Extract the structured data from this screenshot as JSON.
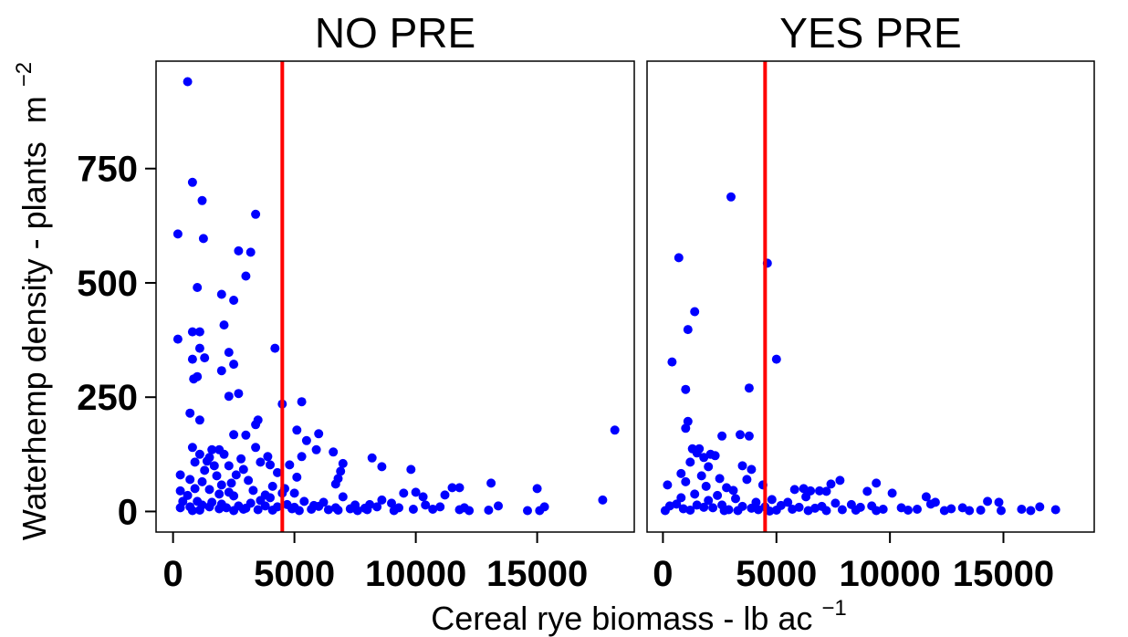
{
  "chart_data": {
    "type": "scatter",
    "ylabel": "Waterhemp density - plants",
    "ylabel_unit": "m",
    "ylabel_exp": "−2",
    "xlabel": "Cereal rye biomass - lb ac",
    "xlabel_exp": "−1",
    "xlim": [
      -700,
      19000
    ],
    "ylim": [
      -45,
      985
    ],
    "xticks": [
      0,
      5000,
      10000,
      15000
    ],
    "xtick_labels": [
      "0",
      "5000",
      "10000",
      "15000"
    ],
    "yticks": [
      0,
      250,
      500,
      750
    ],
    "ytick_labels": [
      "0",
      "250",
      "500",
      "750"
    ],
    "reference_line_x": 4500,
    "colors": {
      "points": "#0000ff",
      "reference_line": "#ff0000",
      "frame": "#000000"
    },
    "panels": [
      {
        "title": "NO PRE",
        "points": [
          [
            600,
            940
          ],
          [
            800,
            720
          ],
          [
            1200,
            680
          ],
          [
            3400,
            650
          ],
          [
            200,
            607
          ],
          [
            1250,
            597
          ],
          [
            2700,
            570
          ],
          [
            3200,
            567
          ],
          [
            3000,
            515
          ],
          [
            1000,
            490
          ],
          [
            2000,
            475
          ],
          [
            2500,
            462
          ],
          [
            2100,
            408
          ],
          [
            800,
            393
          ],
          [
            1100,
            393
          ],
          [
            200,
            377
          ],
          [
            1100,
            357
          ],
          [
            4200,
            357
          ],
          [
            2300,
            348
          ],
          [
            1300,
            336
          ],
          [
            800,
            333
          ],
          [
            2500,
            322
          ],
          [
            2000,
            308
          ],
          [
            1000,
            295
          ],
          [
            850,
            290
          ],
          [
            2700,
            258
          ],
          [
            2300,
            252
          ],
          [
            5300,
            240
          ],
          [
            4500,
            235
          ],
          [
            700,
            215
          ],
          [
            1100,
            200
          ],
          [
            3500,
            200
          ],
          [
            3400,
            190
          ],
          [
            5100,
            178
          ],
          [
            6000,
            170
          ],
          [
            2500,
            168
          ],
          [
            3000,
            167
          ],
          [
            5500,
            155
          ],
          [
            800,
            140
          ],
          [
            3400,
            140
          ],
          [
            1600,
            135
          ],
          [
            5900,
            135
          ],
          [
            1900,
            135
          ],
          [
            6600,
            130
          ],
          [
            2100,
            125
          ],
          [
            1100,
            125
          ],
          [
            3900,
            120
          ],
          [
            5300,
            120
          ],
          [
            1500,
            118
          ],
          [
            8200,
            117
          ],
          [
            2800,
            115
          ],
          [
            1400,
            110
          ],
          [
            900,
            108
          ],
          [
            3600,
            108
          ],
          [
            7000,
            105
          ],
          [
            4000,
            102
          ],
          [
            4800,
            102
          ],
          [
            1700,
            100
          ],
          [
            2300,
            100
          ],
          [
            8600,
            98
          ],
          [
            9800,
            92
          ],
          [
            2900,
            92
          ],
          [
            1300,
            90
          ],
          [
            6900,
            88
          ],
          [
            4300,
            85
          ],
          [
            300,
            80
          ],
          [
            2600,
            80
          ],
          [
            1800,
            78
          ],
          [
            5100,
            75
          ],
          [
            6800,
            72
          ],
          [
            700,
            70
          ],
          [
            3100,
            68
          ],
          [
            1200,
            65
          ],
          [
            2400,
            62
          ],
          [
            13100,
            62
          ],
          [
            6700,
            60
          ],
          [
            2000,
            58
          ],
          [
            4100,
            55
          ],
          [
            11500,
            52
          ],
          [
            11800,
            52
          ],
          [
            4600,
            50
          ],
          [
            900,
            50
          ],
          [
            15000,
            50
          ],
          [
            1500,
            48
          ],
          [
            3300,
            46
          ],
          [
            300,
            45
          ],
          [
            2300,
            42
          ],
          [
            10000,
            42
          ],
          [
            4500,
            40
          ],
          [
            5000,
            40
          ],
          [
            9500,
            40
          ],
          [
            1900,
            38
          ],
          [
            3800,
            36
          ],
          [
            11200,
            36
          ],
          [
            600,
            35
          ],
          [
            2500,
            34
          ],
          [
            7000,
            32
          ],
          [
            10300,
            32
          ],
          [
            4000,
            30
          ],
          [
            17700,
            25
          ],
          [
            8600,
            25
          ],
          [
            3600,
            24
          ],
          [
            400,
            22
          ],
          [
            1000,
            22
          ],
          [
            5400,
            22
          ],
          [
            6200,
            20
          ],
          [
            1600,
            20
          ],
          [
            3200,
            18
          ],
          [
            9000,
            18
          ],
          [
            2000,
            16
          ],
          [
            4700,
            15
          ],
          [
            7500,
            14
          ],
          [
            8100,
            15
          ],
          [
            1200,
            14
          ],
          [
            10400,
            14
          ],
          [
            5800,
            13
          ],
          [
            13400,
            12
          ],
          [
            2700,
            12
          ],
          [
            3800,
            12
          ],
          [
            6000,
            11
          ],
          [
            700,
            10
          ],
          [
            8400,
            10
          ],
          [
            15300,
            10
          ],
          [
            1500,
            10
          ],
          [
            4300,
            10
          ],
          [
            11000,
            10
          ],
          [
            5000,
            9
          ],
          [
            300,
            8
          ],
          [
            9300,
            8
          ],
          [
            6700,
            8
          ],
          [
            2200,
            8
          ],
          [
            12000,
            8
          ],
          [
            3000,
            7
          ],
          [
            7900,
            7
          ],
          [
            4900,
            6
          ],
          [
            1900,
            6
          ],
          [
            7300,
            6
          ],
          [
            2900,
            5
          ],
          [
            9900,
            5
          ],
          [
            5700,
            5
          ],
          [
            10700,
            5
          ],
          [
            3500,
            4
          ],
          [
            6400,
            4
          ],
          [
            8000,
            4
          ],
          [
            11800,
            4
          ],
          [
            4100,
            3
          ],
          [
            1100,
            3
          ],
          [
            6800,
            3
          ],
          [
            13000,
            3
          ],
          [
            14600,
            2
          ],
          [
            800,
            2
          ],
          [
            2500,
            2
          ],
          [
            5200,
            2
          ],
          [
            7600,
            2
          ],
          [
            9100,
            2
          ],
          [
            12200,
            2
          ],
          [
            15100,
            2
          ],
          [
            18200,
            178
          ]
        ]
      },
      {
        "title": "YES PRE",
        "points": [
          [
            3000,
            688
          ],
          [
            700,
            555
          ],
          [
            4600,
            543
          ],
          [
            1100,
            398
          ],
          [
            1400,
            437
          ],
          [
            400,
            327
          ],
          [
            5000,
            333
          ],
          [
            1000,
            267
          ],
          [
            3800,
            270
          ],
          [
            1100,
            197
          ],
          [
            1000,
            182
          ],
          [
            2600,
            165
          ],
          [
            3400,
            168
          ],
          [
            3800,
            165
          ],
          [
            1300,
            137
          ],
          [
            1600,
            137
          ],
          [
            1500,
            128
          ],
          [
            2100,
            125
          ],
          [
            2300,
            122
          ],
          [
            1800,
            118
          ],
          [
            1200,
            108
          ],
          [
            3500,
            100
          ],
          [
            2000,
            98
          ],
          [
            3900,
            92
          ],
          [
            800,
            83
          ],
          [
            1700,
            78
          ],
          [
            2500,
            72
          ],
          [
            3700,
            70
          ],
          [
            1000,
            65
          ],
          [
            7800,
            68
          ],
          [
            7400,
            60
          ],
          [
            9400,
            62
          ],
          [
            200,
            58
          ],
          [
            4400,
            58
          ],
          [
            1900,
            55
          ],
          [
            2800,
            52
          ],
          [
            6200,
            50
          ],
          [
            5800,
            48
          ],
          [
            3100,
            46
          ],
          [
            6900,
            45
          ],
          [
            6500,
            45
          ],
          [
            7200,
            44
          ],
          [
            9000,
            44
          ],
          [
            10100,
            40
          ],
          [
            1400,
            38
          ],
          [
            2400,
            35
          ],
          [
            6300,
            32
          ],
          [
            11600,
            32
          ],
          [
            800,
            30
          ],
          [
            12000,
            20
          ],
          [
            3200,
            28
          ],
          [
            4800,
            26
          ],
          [
            2000,
            24
          ],
          [
            14300,
            22
          ],
          [
            4100,
            20
          ],
          [
            5500,
            20
          ],
          [
            14800,
            20
          ],
          [
            7600,
            18
          ],
          [
            600,
            16
          ],
          [
            11800,
            16
          ],
          [
            8300,
            15
          ],
          [
            1500,
            14
          ],
          [
            2600,
            14
          ],
          [
            5200,
            13
          ],
          [
            16600,
            10
          ],
          [
            300,
            12
          ],
          [
            9200,
            12
          ],
          [
            3500,
            11
          ],
          [
            7000,
            11
          ],
          [
            4500,
            10
          ],
          [
            1800,
            9
          ],
          [
            6000,
            9
          ],
          [
            8700,
            9
          ],
          [
            10500,
            8
          ],
          [
            2200,
            8
          ],
          [
            13200,
            8
          ],
          [
            3900,
            7
          ],
          [
            6700,
            7
          ],
          [
            900,
            6
          ],
          [
            12700,
            6
          ],
          [
            15800,
            5
          ],
          [
            5700,
            5
          ],
          [
            9700,
            5
          ],
          [
            11200,
            5
          ],
          [
            4200,
            4
          ],
          [
            2900,
            4
          ],
          [
            7900,
            4
          ],
          [
            17300,
            4
          ],
          [
            1200,
            3
          ],
          [
            5000,
            3
          ],
          [
            8500,
            3
          ],
          [
            10800,
            3
          ],
          [
            14000,
            3
          ],
          [
            3300,
            2
          ],
          [
            6400,
            2
          ],
          [
            9400,
            2
          ],
          [
            13500,
            2
          ],
          [
            16200,
            2
          ],
          [
            100,
            2
          ],
          [
            2700,
            2
          ],
          [
            7200,
            2
          ],
          [
            12400,
            2
          ],
          [
            14900,
            2
          ],
          [
            4700,
            1
          ]
        ]
      }
    ]
  }
}
